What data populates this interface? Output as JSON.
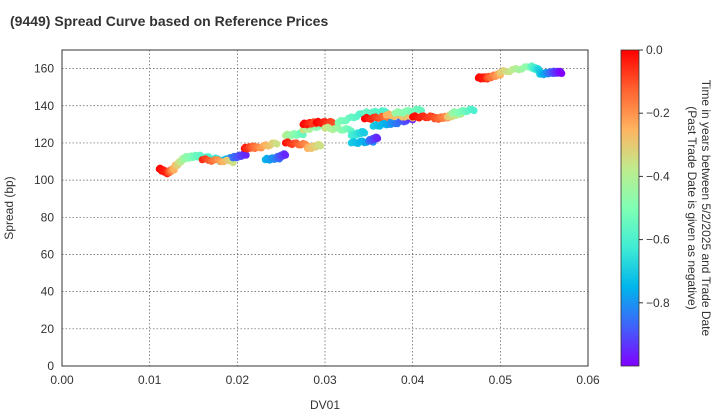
{
  "chart_data": {
    "type": "scatter",
    "title": "(9449)   Spread Curve based on Reference Prices",
    "xlabel": "DV01",
    "ylabel": "Spread (bp)",
    "xlim": [
      0.0,
      0.06
    ],
    "ylim": [
      0,
      170
    ],
    "x_ticks": [
      "0.00",
      "0.01",
      "0.02",
      "0.03",
      "0.04",
      "0.05",
      "0.06"
    ],
    "y_ticks": [
      "0",
      "20",
      "40",
      "60",
      "80",
      "100",
      "120",
      "140",
      "160"
    ],
    "grid": true,
    "colorbar": {
      "label_line1": "Time in years between 5/2/2025 and Trade Date",
      "label_line2": "(Past Trade Date is given as negative)",
      "range": [
        -1.0,
        0.0
      ],
      "ticks": [
        "0.0",
        "−0.2",
        "−0.4",
        "−0.6",
        "−0.8"
      ],
      "colormap": "rainbow"
    },
    "segments": [
      {
        "x": [
          0.0111,
          0.012
        ],
        "y": [
          106,
          104
        ],
        "t": [
          0.0,
          -0.05
        ]
      },
      {
        "x": [
          0.012,
          0.0128
        ],
        "y": [
          104,
          106
        ],
        "t": [
          -0.05,
          -0.25
        ]
      },
      {
        "x": [
          0.0128,
          0.014
        ],
        "y": [
          107,
          112
        ],
        "t": [
          -0.25,
          -0.45
        ]
      },
      {
        "x": [
          0.014,
          0.0155
        ],
        "y": [
          112,
          113
        ],
        "t": [
          -0.45,
          -0.55
        ]
      },
      {
        "x": [
          0.0155,
          0.018
        ],
        "y": [
          113,
          111
        ],
        "t": [
          -0.55,
          -0.65
        ]
      },
      {
        "x": [
          0.018,
          0.0195
        ],
        "y": [
          110,
          112
        ],
        "t": [
          -0.65,
          -0.85
        ]
      },
      {
        "x": [
          0.016,
          0.0195
        ],
        "y": [
          111,
          110
        ],
        "t": [
          -0.05,
          -0.35
        ]
      },
      {
        "x": [
          0.0195,
          0.021
        ],
        "y": [
          112,
          114
        ],
        "t": [
          -0.85,
          -0.95
        ]
      },
      {
        "x": [
          0.0208,
          0.022
        ],
        "y": [
          117,
          118
        ],
        "t": [
          -0.02,
          -0.15
        ]
      },
      {
        "x": [
          0.022,
          0.0245
        ],
        "y": [
          117,
          120
        ],
        "t": [
          -0.15,
          -0.35
        ]
      },
      {
        "x": [
          0.0232,
          0.0248
        ],
        "y": [
          111,
          112
        ],
        "t": [
          -0.75,
          -0.85
        ]
      },
      {
        "x": [
          0.0245,
          0.0255
        ],
        "y": [
          112,
          114
        ],
        "t": [
          -0.85,
          -0.95
        ]
      },
      {
        "x": [
          0.0255,
          0.0275
        ],
        "y": [
          124,
          125
        ],
        "t": [
          -0.4,
          -0.55
        ]
      },
      {
        "x": [
          0.0255,
          0.028
        ],
        "y": [
          120,
          119
        ],
        "t": [
          -0.02,
          -0.2
        ]
      },
      {
        "x": [
          0.028,
          0.0295
        ],
        "y": [
          117,
          119
        ],
        "t": [
          -0.25,
          -0.35
        ]
      },
      {
        "x": [
          0.0275,
          0.03
        ],
        "y": [
          127,
          130
        ],
        "t": [
          -0.35,
          -0.55
        ]
      },
      {
        "x": [
          0.0275,
          0.029
        ],
        "y": [
          130,
          131
        ],
        "t": [
          -0.0,
          -0.1
        ]
      },
      {
        "x": [
          0.029,
          0.031
        ],
        "y": [
          131,
          131
        ],
        "t": [
          -0.0,
          -0.1
        ]
      },
      {
        "x": [
          0.03,
          0.033
        ],
        "y": [
          128,
          127
        ],
        "t": [
          -0.35,
          -0.55
        ]
      },
      {
        "x": [
          0.0315,
          0.0345
        ],
        "y": [
          131,
          136
        ],
        "t": [
          -0.5,
          -0.6
        ]
      },
      {
        "x": [
          0.033,
          0.0345
        ],
        "y": [
          124,
          126
        ],
        "t": [
          -0.6,
          -0.7
        ]
      },
      {
        "x": [
          0.033,
          0.0355
        ],
        "y": [
          120,
          121
        ],
        "t": [
          -0.7,
          -0.8
        ]
      },
      {
        "x": [
          0.035,
          0.036
        ],
        "y": [
          121,
          123
        ],
        "t": [
          -0.85,
          -0.95
        ]
      },
      {
        "x": [
          0.0345,
          0.037
        ],
        "y": [
          136,
          137
        ],
        "t": [
          -0.55,
          -0.6
        ]
      },
      {
        "x": [
          0.0345,
          0.037
        ],
        "y": [
          133,
          134
        ],
        "t": [
          -0.0,
          -0.15
        ]
      },
      {
        "x": [
          0.0355,
          0.038
        ],
        "y": [
          129,
          131
        ],
        "t": [
          -0.7,
          -0.8
        ]
      },
      {
        "x": [
          0.0375,
          0.04
        ],
        "y": [
          130,
          133
        ],
        "t": [
          -0.8,
          -0.95
        ]
      },
      {
        "x": [
          0.037,
          0.04
        ],
        "y": [
          135,
          134
        ],
        "t": [
          -0.25,
          -0.3
        ]
      },
      {
        "x": [
          0.038,
          0.041
        ],
        "y": [
          136,
          138
        ],
        "t": [
          -0.45,
          -0.55
        ]
      },
      {
        "x": [
          0.04,
          0.0425
        ],
        "y": [
          134,
          134
        ],
        "t": [
          -0.0,
          -0.1
        ]
      },
      {
        "x": [
          0.0425,
          0.044
        ],
        "y": [
          133,
          134
        ],
        "t": [
          -0.1,
          -0.2
        ]
      },
      {
        "x": [
          0.044,
          0.0455
        ],
        "y": [
          134,
          136
        ],
        "t": [
          -0.3,
          -0.4
        ]
      },
      {
        "x": [
          0.0445,
          0.047
        ],
        "y": [
          136,
          138
        ],
        "t": [
          -0.45,
          -0.6
        ]
      },
      {
        "x": [
          0.0475,
          0.0485
        ],
        "y": [
          155,
          155
        ],
        "t": [
          -0.0,
          -0.05
        ]
      },
      {
        "x": [
          0.0485,
          0.05
        ],
        "y": [
          155,
          157
        ],
        "t": [
          -0.1,
          -0.25
        ]
      },
      {
        "x": [
          0.05,
          0.0535
        ],
        "y": [
          158,
          161
        ],
        "t": [
          -0.3,
          -0.5
        ]
      },
      {
        "x": [
          0.0535,
          0.0545
        ],
        "y": [
          161,
          159
        ],
        "t": [
          -0.55,
          -0.7
        ]
      },
      {
        "x": [
          0.0545,
          0.056
        ],
        "y": [
          157,
          158
        ],
        "t": [
          -0.7,
          -0.9
        ]
      },
      {
        "x": [
          0.056,
          0.057
        ],
        "y": [
          158,
          158
        ],
        "t": [
          -0.9,
          -1.0
        ]
      }
    ]
  }
}
